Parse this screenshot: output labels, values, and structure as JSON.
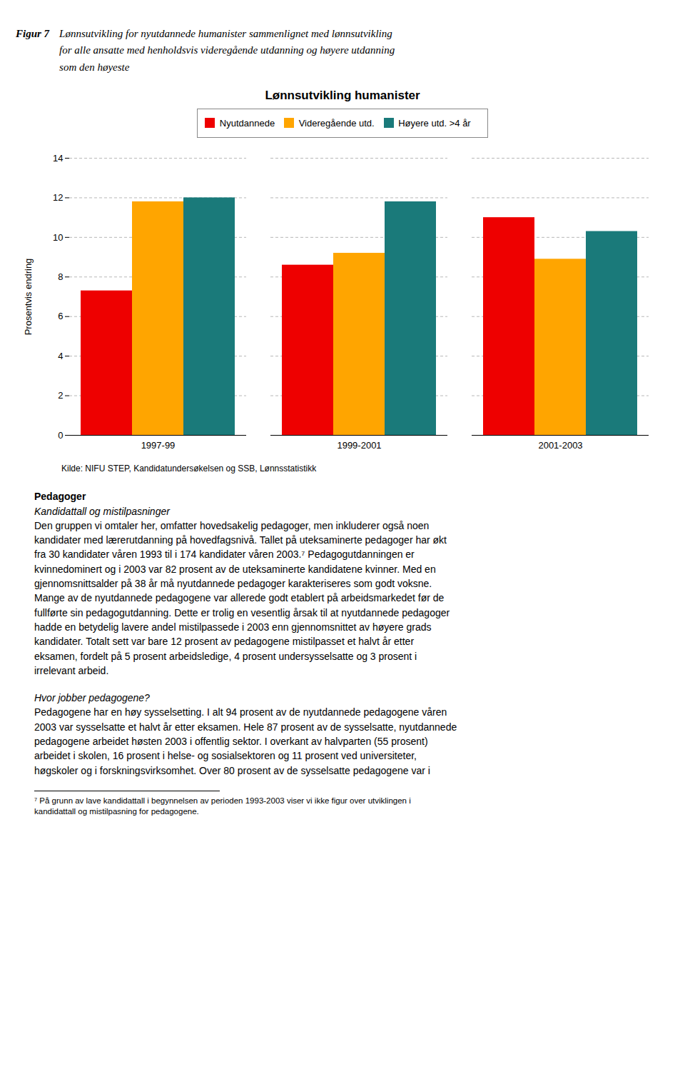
{
  "chart_data": {
    "type": "bar",
    "figure_label": "Figur 7",
    "caption": "Lønnsutvikling for nyutdannede humanister sammenlignet med lønnsutvikling\nfor alle ansatte med henholdsvis videregående utdanning og høyere utdanning\nsom den høyeste",
    "title": "Lønnsutvikling humanister",
    "ylabel": "Prosentvis endring",
    "source": "Kilde: NIFU STEP, Kandidatundersøkelsen og SSB, Lønnsstatistikk",
    "categories": [
      "1997-99",
      "1999-2001",
      "2001-2003"
    ],
    "series": [
      {
        "name": "Nyutdannede",
        "color": "#EE0000",
        "values": [
          7.3,
          8.6,
          11.0
        ]
      },
      {
        "name": "Videregående utd.",
        "color": "#FFA500",
        "values": [
          11.8,
          9.2,
          8.9
        ]
      },
      {
        "name": "Høyere utd. >4 år",
        "color": "#1A7A7A",
        "values": [
          12.0,
          11.8,
          10.3
        ]
      }
    ],
    "ylim": [
      0,
      14
    ],
    "yticks": [
      0,
      2,
      4,
      6,
      8,
      10,
      12,
      14
    ],
    "grid": true,
    "legend": "top",
    "text_sections": [
      {
        "heading": "Pedagoger",
        "subheading": "Kandidattall og mistilpasninger",
        "body": "Den gruppen vi omtaler her, omfatter hovedsakelig pedagoger, men inkluderer også noen\nkandidater med lærerutdanning på hovedfagsnivå. Tallet på uteksaminerte pedagoger har økt\nfra 30 kandidater våren 1993 til i 174 kandidater våren 2003.⁷ Pedagogutdanningen er\nkvinnedominert og i 2003 var 82 prosent av de uteksaminerte kandidatene kvinner. Med en\ngjennomsnittsalder på 38 år må nyutdannede pedagoger karakteriseres som godt voksne.\nMange av de nyutdannede pedagogene var allerede godt etablert på arbeidsmarkedet før de\nfullførte sin pedagogutdanning. Dette er trolig en vesentlig årsak til at nyutdannede pedagoger\nhadde en betydelig lavere andel mistilpassede i 2003 enn gjennomsnittet av høyere grads\nkandidater. Totalt sett var bare 12 prosent av pedagogene mistilpasset et halvt år etter\neksamen, fordelt på 5 prosent arbeidsledige, 4 prosent undersysselsatte og 3 prosent i\nirrelevant arbeid."
      },
      {
        "subheading": "Hvor jobber pedagogene?",
        "body": "Pedagogene har en høy sysselsetting. I alt 94 prosent av de nyutdannede pedagogene våren\n2003 var sysselsatte et halvt år etter eksamen. Hele 87 prosent av de sysselsatte, nyutdannede\npedagogene arbeidet høsten 2003 i offentlig sektor. I overkant av halvparten (55 prosent)\narbeidet i skolen, 16 prosent i helse- og sosialsektoren og 11 prosent ved universiteter,\nhøgskoler og i forskningsvirksomhet. Over 80 prosent av de sysselsatte pedagogene var i"
      }
    ],
    "footnote": "⁷ På grunn av lave kandidattall i begynnelsen av perioden 1993-2003 viser vi ikke figur over utviklingen i\nkandidattall og mistilpasning for pedagogene."
  }
}
